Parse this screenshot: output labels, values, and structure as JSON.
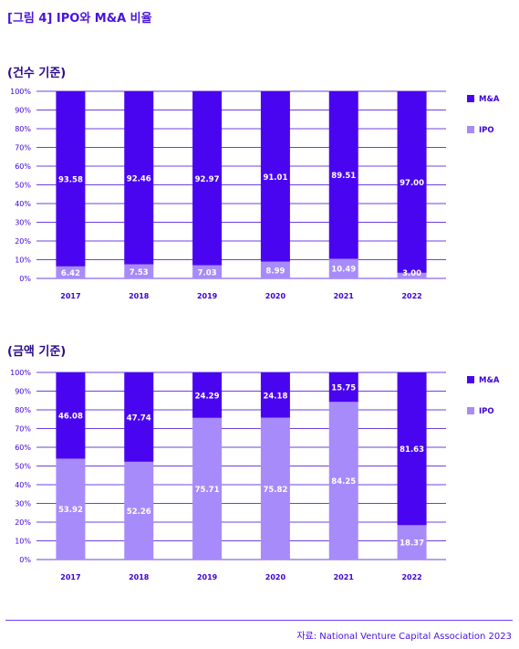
{
  "figure_title": "[그림 4] IPO와 M&A 비율",
  "source": "자료: National Venture Capital Association 2023",
  "colors": {
    "ma": "#4a05f0",
    "ipo": "#a78bfa",
    "grid": "#3d00d6",
    "tick": "#3d00d6"
  },
  "chart_data": [
    {
      "type": "bar",
      "stacked": true,
      "subtitle": "(건수 기준)",
      "categories": [
        "2017",
        "2018",
        "2019",
        "2020",
        "2021",
        "2022"
      ],
      "series": [
        {
          "name": "IPO",
          "values": [
            6.42,
            7.53,
            7.03,
            8.99,
            10.49,
            3.0
          ],
          "labels": [
            "6.42",
            "7.53",
            "7.03",
            "8.99",
            "10.49",
            "3.00"
          ]
        },
        {
          "name": "M&A",
          "values": [
            93.58,
            92.46,
            92.97,
            91.01,
            89.51,
            97.0
          ],
          "labels": [
            "93.58",
            "92.46",
            "92.97",
            "91.01",
            "89.51",
            "97.00"
          ]
        }
      ],
      "ylim": [
        0,
        100
      ],
      "yticks": [
        "0%",
        "10%",
        "20%",
        "30%",
        "40%",
        "50%",
        "60%",
        "70%",
        "80%",
        "90%",
        "100%"
      ],
      "grid": true,
      "legend_position": "right"
    },
    {
      "type": "bar",
      "stacked": true,
      "subtitle": "(금액 기준)",
      "categories": [
        "2017",
        "2018",
        "2019",
        "2020",
        "2021",
        "2022"
      ],
      "series": [
        {
          "name": "IPO",
          "values": [
            53.92,
            52.26,
            75.71,
            75.82,
            84.25,
            18.37
          ],
          "labels": [
            "53.92",
            "52.26",
            "75.71",
            "75.82",
            "84.25",
            "18.37"
          ]
        },
        {
          "name": "M&A",
          "values": [
            46.08,
            47.74,
            24.29,
            24.18,
            15.75,
            81.63
          ],
          "labels": [
            "46.08",
            "47.74",
            "24.29",
            "24.18",
            "15.75",
            "81.63"
          ]
        }
      ],
      "ylim": [
        0,
        100
      ],
      "yticks": [
        "0%",
        "10%",
        "20%",
        "30%",
        "40%",
        "50%",
        "60%",
        "70%",
        "80%",
        "90%",
        "100%"
      ],
      "grid": true,
      "legend_position": "right"
    }
  ]
}
